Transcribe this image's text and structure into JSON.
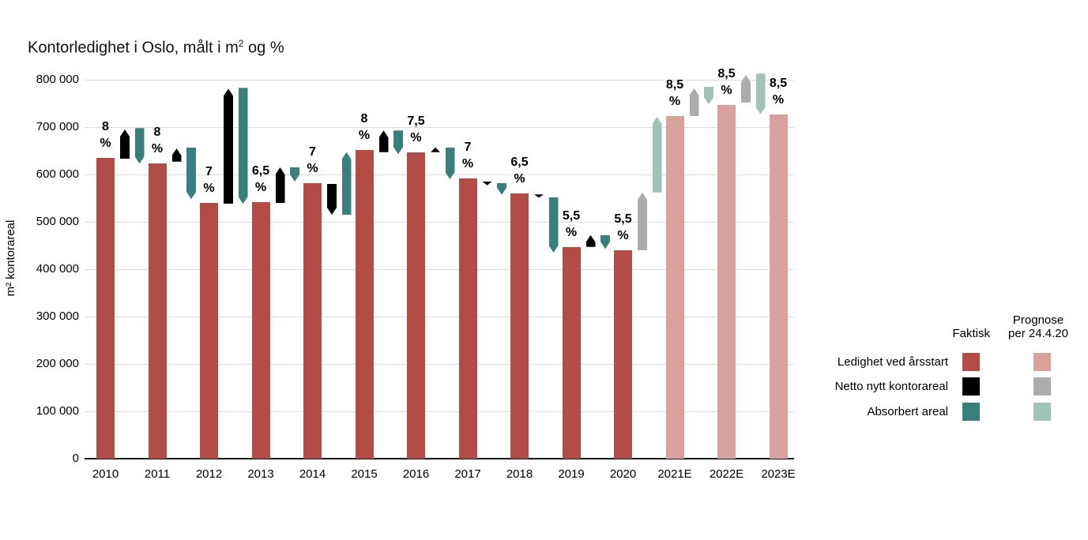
{
  "title": {
    "pre": "Kontorledighet i Oslo, målt i m",
    "sup": "2",
    "post": " og %"
  },
  "colors": {
    "ledighet_faktisk": "#b14c46",
    "ledighet_prognose": "#d9a19e",
    "netto_faktisk": "#000000",
    "netto_prognose": "#acacac",
    "absorbert_faktisk": "#3a7e7e",
    "absorbert_prognose": "#a0c3b9",
    "gridline": "#dcdcdc",
    "axis": "#1a1a1a",
    "text": "#000000"
  },
  "legend": {
    "col_faktisk": "Faktisk",
    "col_prognose": "Prognose\nper 24.4.20",
    "rows": [
      {
        "label": "Ledighet ved årsstart",
        "faktisk_color": "#b14c46",
        "prognose_color": "#d9a19e"
      },
      {
        "label": "Netto nytt kontorareal",
        "faktisk_color": "#000000",
        "prognose_color": "#acacac"
      },
      {
        "label": "Absorbert areal",
        "faktisk_color": "#3a7e7e",
        "prognose_color": "#a0c3b9"
      }
    ]
  },
  "chart_data": {
    "type": "bar",
    "title": "Kontorledighet i Oslo, målt i m² og %",
    "xlabel": "",
    "ylabel": "m² kontorareal",
    "ylim": [
      0,
      800000
    ],
    "ytick_step": 100000,
    "yticks": [
      "0",
      "100 000",
      "200 000",
      "300 000",
      "400 000",
      "500 000",
      "600 000",
      "700 000",
      "800 000"
    ],
    "grid": true,
    "legend_position": "right",
    "categories": [
      "2010",
      "2011",
      "2012",
      "2013",
      "2014",
      "2015",
      "2016",
      "2017",
      "2018",
      "2019",
      "2020",
      "2021E",
      "2022E",
      "2023E"
    ],
    "series_names": [
      "Ledighet ved årsstart",
      "Netto nytt kontorareal",
      "Absorbert areal"
    ],
    "years": [
      {
        "label": "2010",
        "percent": "8",
        "ledighet": 635000,
        "netto": [
          633000,
          695000
        ],
        "absorbert": [
          698000,
          623000
        ],
        "bar_prognose": false,
        "arrows_prognose": false
      },
      {
        "label": "2011",
        "percent": "8",
        "ledighet": 623000,
        "netto": [
          627000,
          655000
        ],
        "absorbert": [
          657000,
          548000
        ],
        "bar_prognose": false,
        "arrows_prognose": false
      },
      {
        "label": "2012",
        "percent": "7",
        "ledighet": 540000,
        "netto": [
          538000,
          781000
        ],
        "absorbert": [
          783000,
          538000
        ],
        "bar_prognose": false,
        "arrows_prognose": false
      },
      {
        "label": "2013",
        "percent": "6,5",
        "ledighet": 542000,
        "netto": [
          540000,
          615000
        ],
        "absorbert": [
          615000,
          585000
        ],
        "bar_prognose": false,
        "arrows_prognose": false
      },
      {
        "label": "2014",
        "percent": "7",
        "ledighet": 582000,
        "netto": [
          580000,
          515000
        ],
        "absorbert": [
          515000,
          647000
        ],
        "bar_prognose": false,
        "arrows_prognose": false
      },
      {
        "label": "2015",
        "percent": "8",
        "ledighet": 652000,
        "netto": [
          647000,
          693000
        ],
        "absorbert": [
          693000,
          643000
        ],
        "bar_prognose": false,
        "arrows_prognose": false
      },
      {
        "label": "2016",
        "percent": "7,5",
        "ledighet": 647000,
        "netto": [
          647000,
          657000
        ],
        "absorbert": [
          657000,
          590000
        ],
        "bar_prognose": false,
        "arrows_prognose": false
      },
      {
        "label": "2017",
        "percent": "7",
        "ledighet": 592000,
        "netto": [
          585000,
          577000
        ],
        "absorbert": [
          582000,
          557000
        ],
        "bar_prognose": false,
        "arrows_prognose": false
      },
      {
        "label": "2018",
        "percent": "6,5",
        "ledighet": 560000,
        "netto": [
          558000,
          551000
        ],
        "absorbert": [
          552000,
          435000
        ],
        "bar_prognose": false,
        "arrows_prognose": false
      },
      {
        "label": "2019",
        "percent": "5,5",
        "ledighet": 447000,
        "netto": [
          447000,
          472000
        ],
        "absorbert": [
          472000,
          443000
        ],
        "bar_prognose": false,
        "arrows_prognose": false
      },
      {
        "label": "2020",
        "percent": "5,5",
        "ledighet": 440000,
        "netto": [
          440000,
          562000
        ],
        "absorbert": [
          562000,
          722000
        ],
        "bar_prognose": false,
        "arrows_prognose": true
      },
      {
        "label": "2021E",
        "percent": "8,5",
        "ledighet": 723000,
        "netto": [
          723000,
          782000
        ],
        "absorbert": [
          785000,
          748000
        ],
        "bar_prognose": true,
        "arrows_prognose": true
      },
      {
        "label": "2022E",
        "percent": "8,5",
        "ledighet": 747000,
        "netto": [
          752000,
          810000
        ],
        "absorbert": [
          813000,
          727000
        ],
        "bar_prognose": true,
        "arrows_prognose": true
      },
      {
        "label": "2023E",
        "percent": "8,5",
        "ledighet": 727000,
        "netto": null,
        "absorbert": null,
        "bar_prognose": true,
        "arrows_prognose": true
      }
    ]
  }
}
